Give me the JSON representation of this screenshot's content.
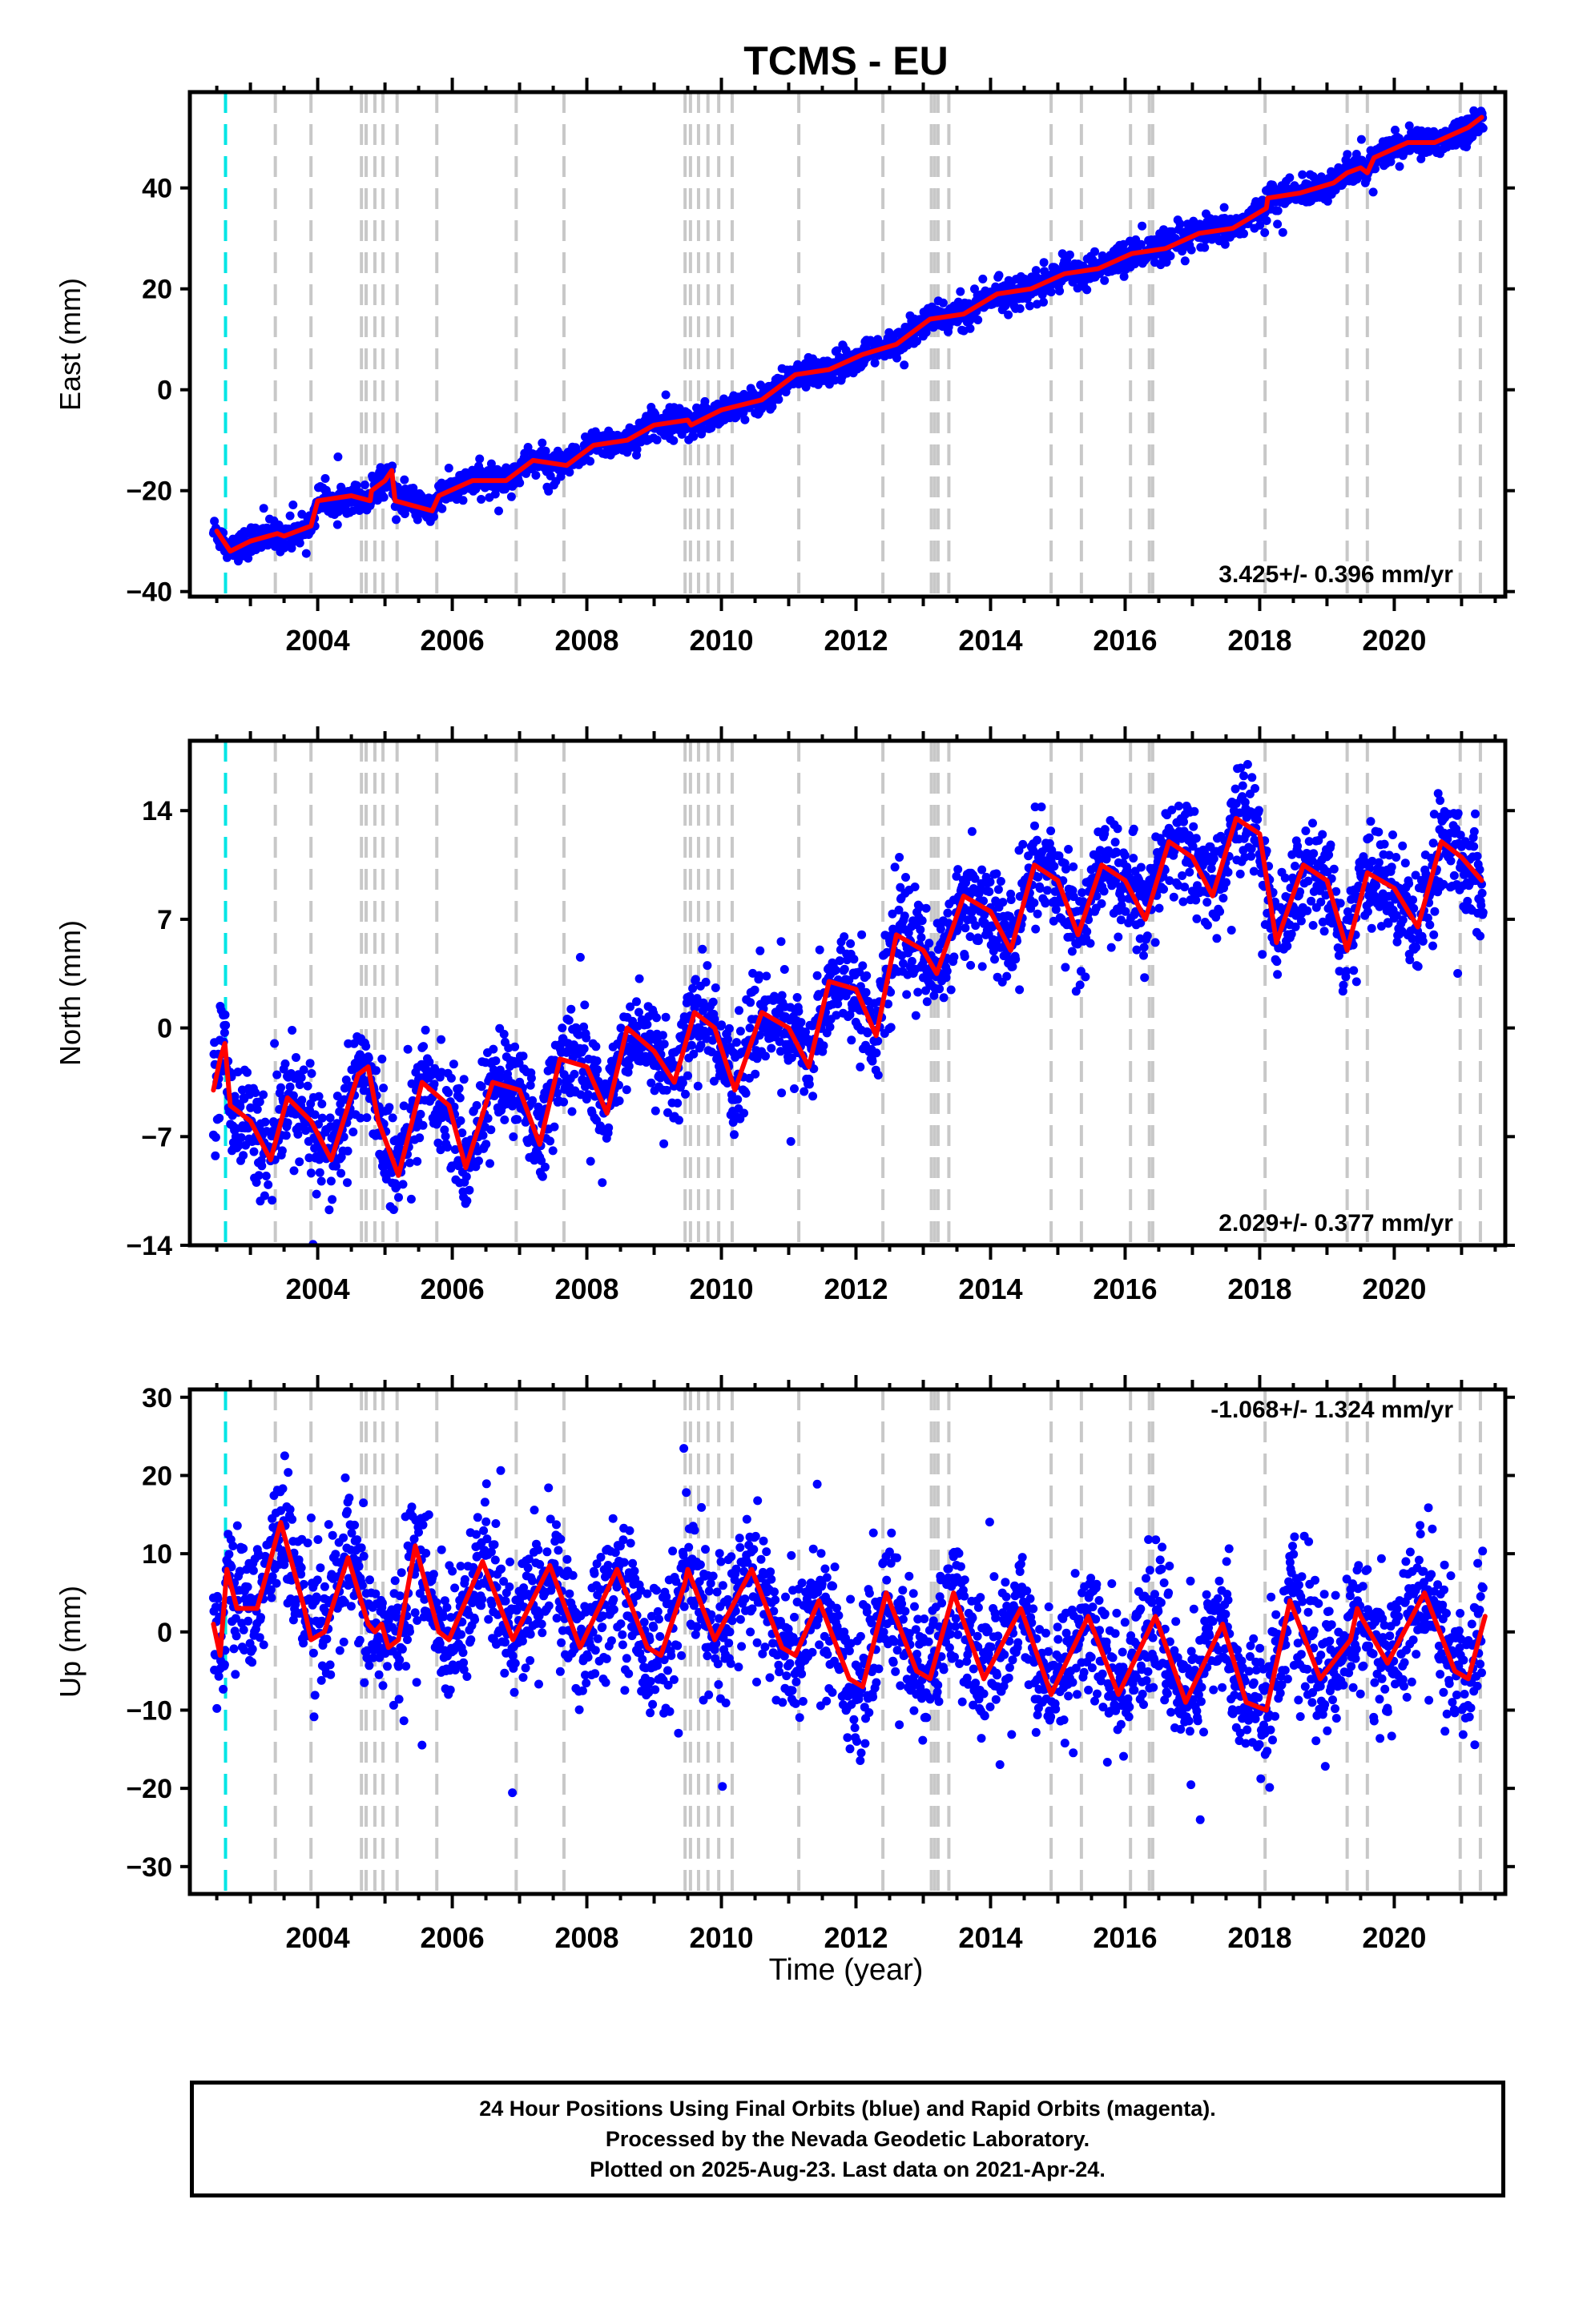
{
  "title": "TCMS - EU",
  "chart_data": [
    {
      "type": "scatter",
      "component": "East",
      "ylabel": "East (mm)",
      "xlabel": "",
      "xlim": [
        2002.1,
        2021.65
      ],
      "ylim": [
        -41,
        59
      ],
      "yticks": [
        -40,
        -20,
        0,
        20,
        40
      ],
      "xticks": [
        2004,
        2006,
        2008,
        2010,
        2012,
        2014,
        2016,
        2018,
        2020
      ],
      "rate_label": "3.425+/- 0.396 mm/yr",
      "rate_position": "bottom-right",
      "model_curve": [
        [
          2002.5,
          -28
        ],
        [
          2002.7,
          -32
        ],
        [
          2003.0,
          -30
        ],
        [
          2003.4,
          -28.5
        ],
        [
          2003.5,
          -29
        ],
        [
          2003.9,
          -27
        ],
        [
          2004.0,
          -22
        ],
        [
          2004.5,
          -21
        ],
        [
          2004.78,
          -22
        ],
        [
          2004.8,
          -20
        ],
        [
          2005.0,
          -18
        ],
        [
          2005.1,
          -16
        ],
        [
          2005.15,
          -22
        ],
        [
          2005.7,
          -24
        ],
        [
          2005.8,
          -21
        ],
        [
          2006.3,
          -18
        ],
        [
          2006.8,
          -18
        ],
        [
          2007.2,
          -14
        ],
        [
          2007.7,
          -15
        ],
        [
          2008.1,
          -11
        ],
        [
          2008.6,
          -10
        ],
        [
          2009.0,
          -7
        ],
        [
          2009.5,
          -6
        ],
        [
          2009.55,
          -7
        ],
        [
          2010.0,
          -4
        ],
        [
          2010.6,
          -2
        ],
        [
          2011.1,
          3
        ],
        [
          2011.6,
          4
        ],
        [
          2012.1,
          7
        ],
        [
          2012.6,
          9
        ],
        [
          2013.1,
          14
        ],
        [
          2013.6,
          15
        ],
        [
          2014.1,
          19
        ],
        [
          2014.6,
          20
        ],
        [
          2015.1,
          23
        ],
        [
          2015.6,
          24
        ],
        [
          2016.1,
          27
        ],
        [
          2016.6,
          28
        ],
        [
          2017.1,
          31
        ],
        [
          2017.6,
          32
        ],
        [
          2018.1,
          36
        ],
        [
          2018.12,
          38
        ],
        [
          2018.6,
          39
        ],
        [
          2019.1,
          41
        ],
        [
          2019.3,
          43
        ],
        [
          2019.5,
          44
        ],
        [
          2019.6,
          43
        ],
        [
          2019.7,
          46
        ],
        [
          2020.2,
          49
        ],
        [
          2020.6,
          49
        ],
        [
          2021.1,
          52
        ],
        [
          2021.3,
          54
        ]
      ],
      "offset_lines_gray": [
        2003.37,
        2003.9,
        2004.65,
        2004.72,
        2004.85,
        2004.97,
        2005.18,
        2005.77,
        2006.95,
        2007.66,
        2009.46,
        2009.54,
        2009.66,
        2009.8,
        2009.96,
        2010.16,
        2011.15,
        2012.4,
        2013.12,
        2013.17,
        2013.22,
        2013.38,
        2014.9,
        2015.35,
        2016.08,
        2016.36,
        2016.41,
        2018.08,
        2019.3,
        2019.6,
        2020.98,
        2021.28
      ],
      "offset_line_cyan": 2002.63,
      "series": []
    },
    {
      "type": "scatter",
      "component": "North",
      "ylabel": "North (mm)",
      "xlabel": "",
      "xlim": [
        2002.1,
        2021.65
      ],
      "ylim": [
        -14,
        18.5
      ],
      "yticks": [
        -14,
        -7,
        0,
        7,
        14
      ],
      "xticks": [
        2004,
        2006,
        2008,
        2010,
        2012,
        2014,
        2016,
        2018,
        2020
      ],
      "rate_label": "2.029+/- 0.377 mm/yr",
      "rate_position": "bottom-right",
      "seasonal_peak_month_frac": 0.6,
      "model_curve": [
        [
          2002.45,
          -4
        ],
        [
          2002.55,
          -2
        ],
        [
          2002.62,
          -1
        ],
        [
          2002.7,
          -5
        ],
        [
          2003.0,
          -6
        ],
        [
          2003.3,
          -8.5
        ],
        [
          2003.55,
          -4.5
        ],
        [
          2003.9,
          -6
        ],
        [
          2004.2,
          -8.5
        ],
        [
          2004.6,
          -3
        ],
        [
          2004.75,
          -2.5
        ],
        [
          2004.9,
          -6
        ],
        [
          2005.2,
          -9.5
        ],
        [
          2005.55,
          -3.5
        ],
        [
          2005.95,
          -5
        ],
        [
          2006.2,
          -9
        ],
        [
          2006.6,
          -3.5
        ],
        [
          2007.0,
          -4
        ],
        [
          2007.3,
          -7.5
        ],
        [
          2007.6,
          -2
        ],
        [
          2008.0,
          -2.5
        ],
        [
          2008.3,
          -5.5
        ],
        [
          2008.6,
          0
        ],
        [
          2009.0,
          -1.5
        ],
        [
          2009.3,
          -3.5
        ],
        [
          2009.6,
          1
        ],
        [
          2009.9,
          0
        ],
        [
          2010.2,
          -4
        ],
        [
          2010.6,
          1
        ],
        [
          2011.0,
          0
        ],
        [
          2011.3,
          -2.5
        ],
        [
          2011.6,
          3
        ],
        [
          2012.0,
          2.5
        ],
        [
          2012.3,
          -0.5
        ],
        [
          2012.6,
          6
        ],
        [
          2013.0,
          5
        ],
        [
          2013.2,
          3.5
        ],
        [
          2013.6,
          8.5
        ],
        [
          2014.0,
          7.5
        ],
        [
          2014.3,
          5
        ],
        [
          2014.65,
          10.5
        ],
        [
          2015.0,
          9.5
        ],
        [
          2015.3,
          6
        ],
        [
          2015.65,
          10.5
        ],
        [
          2016.0,
          9.5
        ],
        [
          2016.3,
          7
        ],
        [
          2016.65,
          12
        ],
        [
          2017.0,
          11
        ],
        [
          2017.3,
          8.5
        ],
        [
          2017.65,
          13.5
        ],
        [
          2018.0,
          12.5
        ],
        [
          2018.25,
          5.5
        ],
        [
          2018.65,
          10.5
        ],
        [
          2019.0,
          9.5
        ],
        [
          2019.3,
          5
        ],
        [
          2019.6,
          10
        ],
        [
          2020.0,
          9
        ],
        [
          2020.35,
          6.5
        ],
        [
          2020.7,
          12
        ],
        [
          2021.0,
          11
        ],
        [
          2021.3,
          9.5
        ]
      ],
      "offset_lines_gray": [
        2003.37,
        2003.9,
        2004.65,
        2004.72,
        2004.85,
        2004.97,
        2005.18,
        2005.77,
        2006.95,
        2007.66,
        2009.46,
        2009.54,
        2009.66,
        2009.8,
        2009.96,
        2010.16,
        2011.15,
        2012.4,
        2013.12,
        2013.17,
        2013.22,
        2013.38,
        2014.9,
        2015.35,
        2016.08,
        2016.36,
        2016.41,
        2018.08,
        2019.3,
        2019.6,
        2020.98,
        2021.28
      ],
      "offset_line_cyan": 2002.63,
      "series": []
    },
    {
      "type": "scatter",
      "component": "Up",
      "ylabel": "Up (mm)",
      "xlabel": "Time (year)",
      "xlim": [
        2002.1,
        2021.65
      ],
      "ylim": [
        -33.5,
        31
      ],
      "yticks": [
        -30,
        -20,
        -10,
        0,
        10,
        20,
        30
      ],
      "xticks": [
        2004,
        2006,
        2008,
        2010,
        2012,
        2014,
        2016,
        2018,
        2020
      ],
      "rate_label": "-1.068+/- 1.324 mm/yr",
      "rate_position": "top-right",
      "model_curve": [
        [
          2002.45,
          1
        ],
        [
          2002.55,
          -3
        ],
        [
          2002.65,
          8
        ],
        [
          2002.8,
          3
        ],
        [
          2003.1,
          3
        ],
        [
          2003.45,
          14
        ],
        [
          2003.8,
          3
        ],
        [
          2003.9,
          -1
        ],
        [
          2004.1,
          0
        ],
        [
          2004.45,
          9.5
        ],
        [
          2004.75,
          1
        ],
        [
          2004.85,
          0
        ],
        [
          2004.95,
          1
        ],
        [
          2005.05,
          -2
        ],
        [
          2005.2,
          -1
        ],
        [
          2005.45,
          11
        ],
        [
          2005.8,
          0
        ],
        [
          2005.95,
          -1
        ],
        [
          2006.45,
          9
        ],
        [
          2006.9,
          -1
        ],
        [
          2007.45,
          8.5
        ],
        [
          2007.9,
          -2
        ],
        [
          2008.45,
          8
        ],
        [
          2008.9,
          -2
        ],
        [
          2009.1,
          -3
        ],
        [
          2009.45,
          6
        ],
        [
          2009.5,
          8
        ],
        [
          2009.9,
          -1
        ],
        [
          2010.45,
          8
        ],
        [
          2010.9,
          -2
        ],
        [
          2011.1,
          -3
        ],
        [
          2011.45,
          4
        ],
        [
          2011.9,
          -6
        ],
        [
          2012.1,
          -7
        ],
        [
          2012.45,
          5
        ],
        [
          2012.9,
          -5
        ],
        [
          2013.1,
          -6
        ],
        [
          2013.45,
          5
        ],
        [
          2013.9,
          -6
        ],
        [
          2014.45,
          3
        ],
        [
          2014.9,
          -8
        ],
        [
          2015.45,
          2
        ],
        [
          2015.9,
          -8
        ],
        [
          2016.45,
          2
        ],
        [
          2016.9,
          -9
        ],
        [
          2017.45,
          1
        ],
        [
          2017.8,
          -9
        ],
        [
          2018.1,
          -10
        ],
        [
          2018.45,
          4
        ],
        [
          2018.9,
          -6
        ],
        [
          2019.35,
          -1
        ],
        [
          2019.45,
          3
        ],
        [
          2019.5,
          2
        ],
        [
          2019.9,
          -4
        ],
        [
          2020.45,
          5
        ],
        [
          2020.9,
          -5
        ],
        [
          2021.1,
          -6
        ],
        [
          2021.35,
          2
        ]
      ],
      "offset_lines_gray": [
        2003.37,
        2003.9,
        2004.65,
        2004.72,
        2004.85,
        2004.97,
        2005.18,
        2005.77,
        2006.95,
        2007.66,
        2009.46,
        2009.54,
        2009.66,
        2009.8,
        2009.96,
        2010.16,
        2011.15,
        2012.4,
        2013.12,
        2013.17,
        2013.22,
        2013.38,
        2014.9,
        2015.35,
        2016.08,
        2016.36,
        2016.41,
        2018.08,
        2019.3,
        2019.6,
        2020.98,
        2021.28
      ],
      "offset_line_cyan": 2002.63,
      "series": []
    }
  ],
  "colors": {
    "data_points": "#0000ff",
    "model": "#ff0000",
    "offset_gray": "#c8c8c8",
    "offset_cyan": "#00e5e5",
    "axes": "#000000"
  },
  "footer": {
    "line1": "24 Hour Positions Using Final Orbits (blue) and Rapid Orbits (magenta).",
    "line2": "Processed by the Nevada Geodetic Laboratory.",
    "line3": "Plotted on 2025-Aug-23. Last data on 2021-Apr-24."
  }
}
